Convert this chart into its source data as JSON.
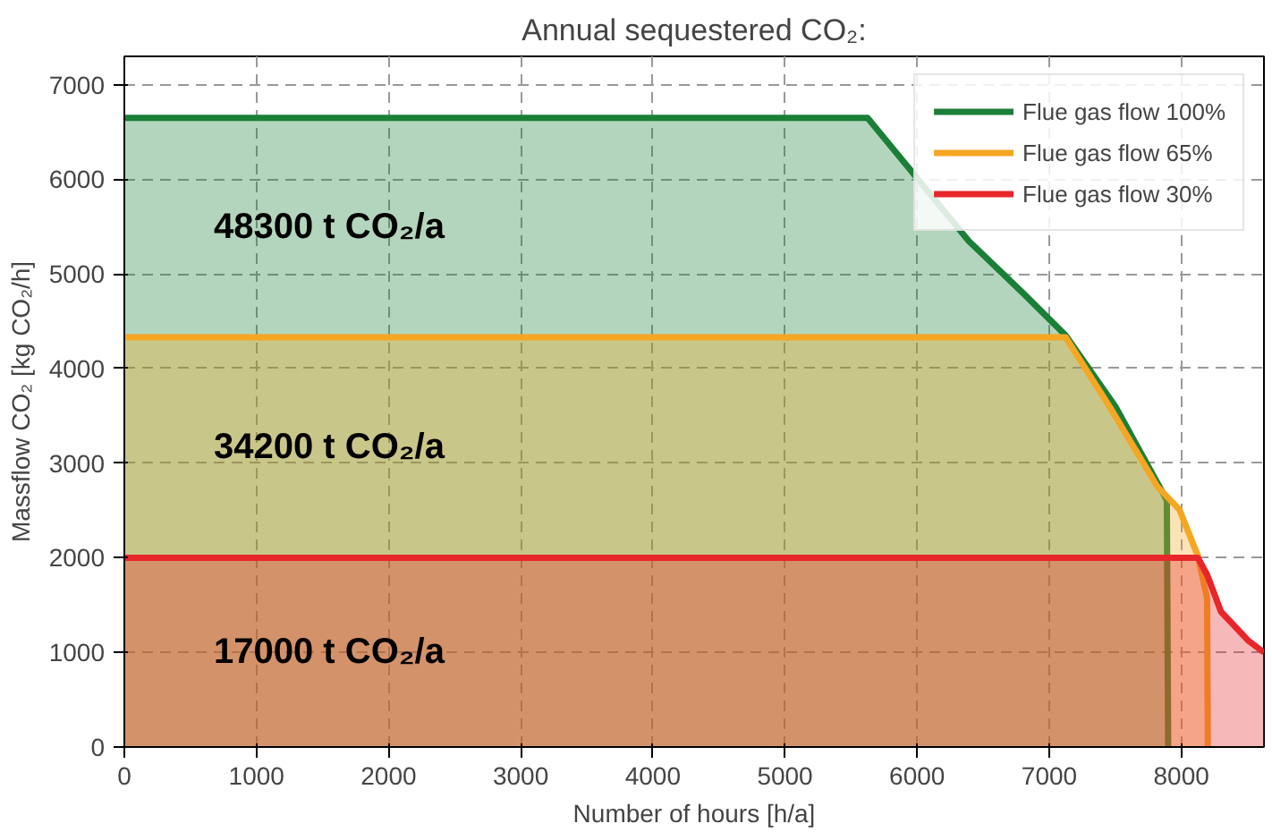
{
  "chart_data": {
    "type": "area",
    "title": "Annual sequestered CO₂:",
    "xlabel": "Number of hours [h/a]",
    "ylabel": "Massflow CO₂ [kg CO₂/h]",
    "xlim": [
      0,
      8625
    ],
    "ylim": [
      0,
      7300
    ],
    "xticks": [
      0,
      1000,
      2000,
      3000,
      4000,
      5000,
      6000,
      7000,
      8000
    ],
    "yticks": [
      0,
      1000,
      2000,
      3000,
      4000,
      5000,
      6000,
      7000
    ],
    "grid": true,
    "legend": "top right",
    "line_style": "solid",
    "series": [
      {
        "name": "Flue gas flow 100%",
        "color": "#1a7f37",
        "x": [
          0,
          5625,
          6390,
          6800,
          7125,
          7500,
          7890,
          7900
        ],
        "values": [
          6650,
          6650,
          5350,
          4800,
          4350,
          3600,
          2610,
          0
        ]
      },
      {
        "name": "Flue gas flow 65%",
        "color": "#f5a623",
        "x": [
          0,
          7125,
          7460,
          7820,
          7985,
          8125,
          8195,
          8200
        ],
        "values": [
          4330,
          4330,
          3590,
          2750,
          2510,
          2020,
          1570,
          0
        ]
      },
      {
        "name": "Flue gas flow 30%",
        "color": "#e8262a",
        "x": [
          0,
          8125,
          8195,
          8300,
          8510,
          8625
        ],
        "values": [
          2000,
          2000,
          1820,
          1430,
          1120,
          1000
        ]
      }
    ],
    "annotations": [
      "48300 t CO₂/a",
      "34200 t CO₂/a",
      "17000 t CO₂/a"
    ]
  }
}
